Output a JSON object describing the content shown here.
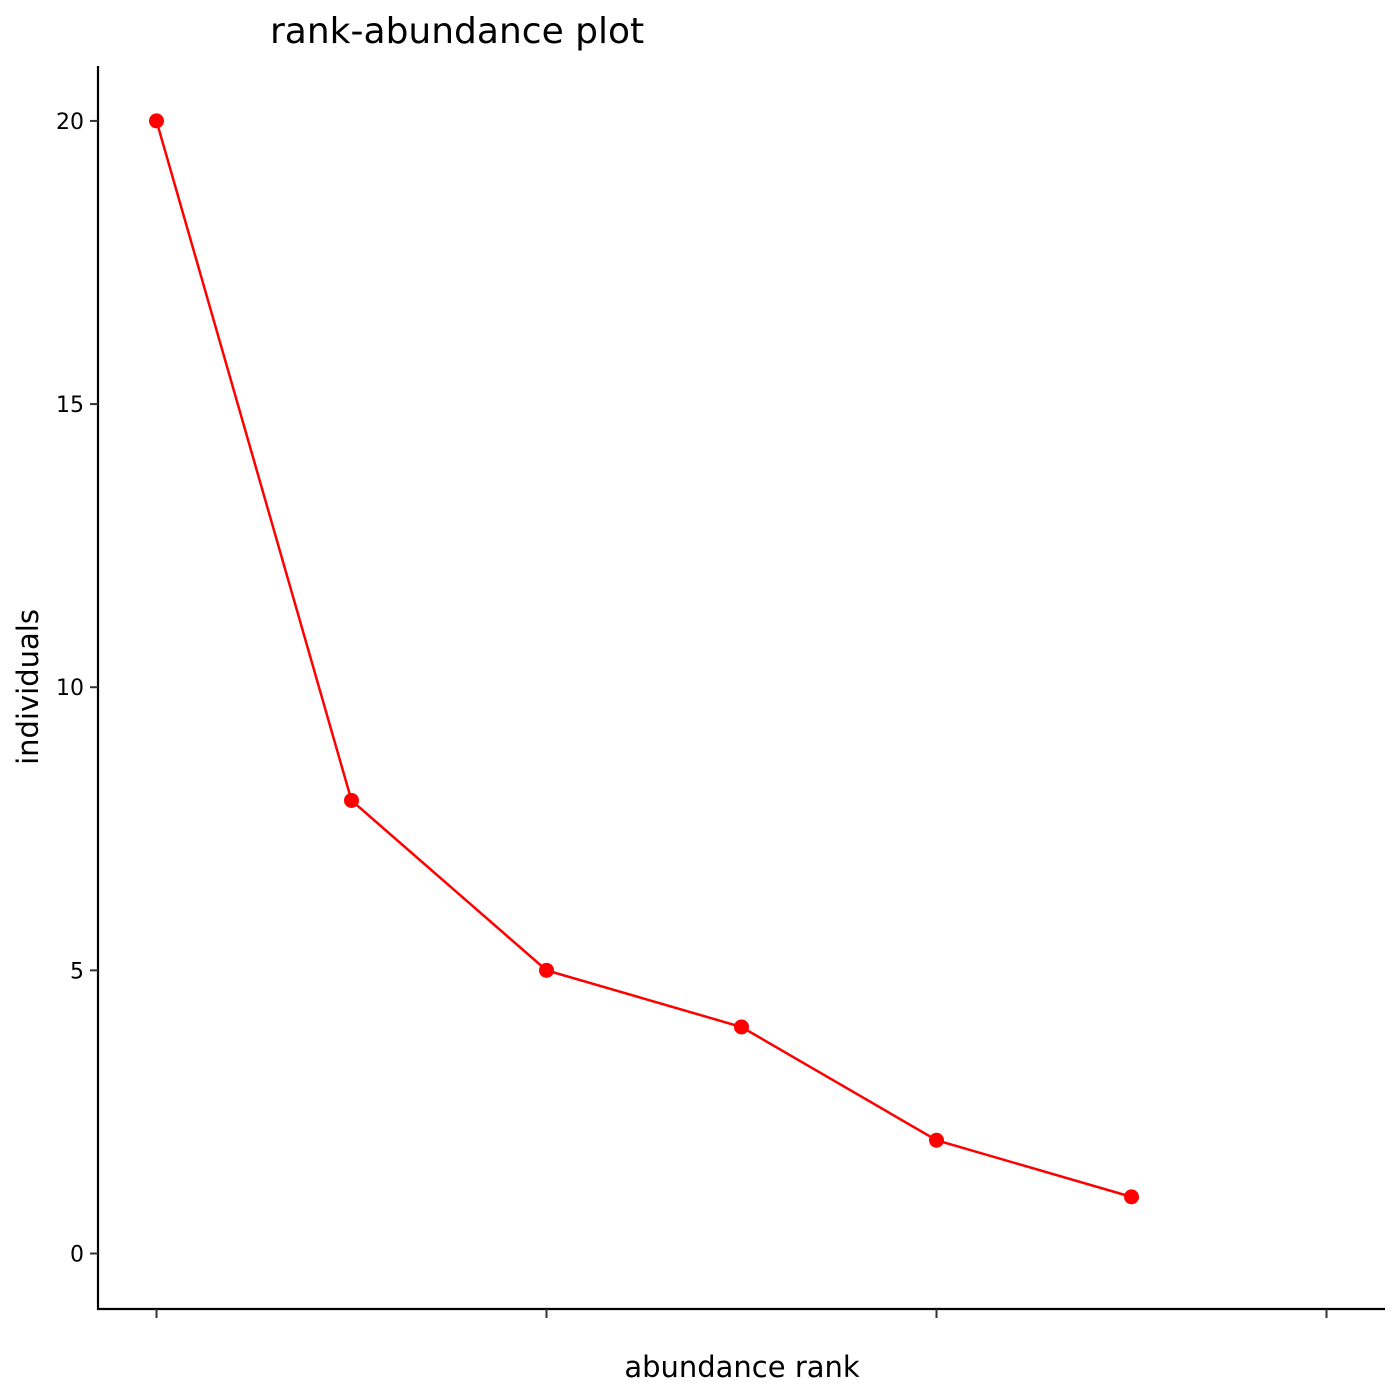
{
  "chart_data": {
    "type": "line",
    "title": "rank-abundance plot",
    "xlabel": "abundance rank",
    "ylabel": "individuals",
    "x": [
      1,
      2,
      3,
      4,
      5,
      6
    ],
    "series": [
      {
        "values": [
          20,
          8,
          5,
          4,
          2,
          1
        ]
      }
    ],
    "xlim": [
      0.7,
      7.3
    ],
    "ylim": [
      -0.98,
      20.97
    ],
    "x_ticks": [
      1,
      3,
      5,
      7
    ],
    "x_tick_labels": [
      "",
      "",
      "",
      ""
    ],
    "y_ticks": [
      0,
      5,
      10,
      15,
      20
    ],
    "y_tick_labels": [
      "0",
      "5",
      "10",
      "15",
      "20"
    ],
    "color": "#ff0000",
    "markers": true,
    "grid": false,
    "legend": "none"
  }
}
